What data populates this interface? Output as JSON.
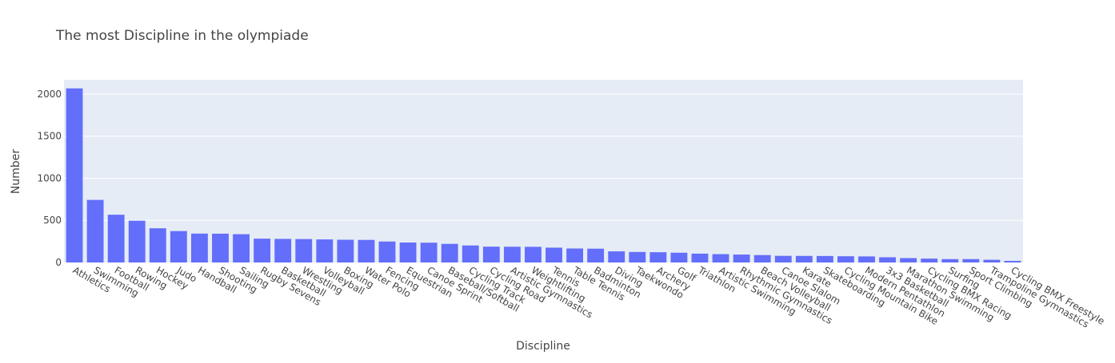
{
  "colors": {
    "bar": "#636efa",
    "plot_bg": "#e5ecf6",
    "paper_bg": "#ffffff",
    "grid": "#ffffff",
    "text": "#444444"
  },
  "chart_data": {
    "type": "bar",
    "title": "The most Discipline in the olympiade",
    "xlabel": "Discipline",
    "ylabel": "Number",
    "ylim": [
      0,
      2170
    ],
    "yticks": [
      0,
      500,
      1000,
      1500,
      2000
    ],
    "grid": true,
    "categories": [
      "Athletics",
      "Swimming",
      "Football",
      "Rowing",
      "Hockey",
      "Judo",
      "Handball",
      "Shooting",
      "Sailing",
      "Rugby Sevens",
      "Basketball",
      "Wrestling",
      "Volleyball",
      "Boxing",
      "Water Polo",
      "Fencing",
      "Equestrian",
      "Canoe Sprint",
      "Baseball/Softball",
      "Cycling Track",
      "Cycling Road",
      "Artistic Gymnastics",
      "Weightlifting",
      "Tennis",
      "Table Tennis",
      "Badminton",
      "Diving",
      "Taekwondo",
      "Archery",
      "Golf",
      "Triathlon",
      "Artistic Swimming",
      "Rhythmic Gymnastics",
      "Beach Volleyball",
      "Canoe Slalom",
      "Karate",
      "Skateboarding",
      "Cycling Mountain Bike",
      "Modern Pentathlon",
      "3x3 Basketball",
      "Marathon Swimming",
      "Cycling BMX Racing",
      "Surfing",
      "Sport Climbing",
      "Trampoline Gymnastics",
      "Cycling BMX Freestyle"
    ],
    "values": [
      2068,
      743,
      567,
      496,
      406,
      373,
      343,
      342,
      336,
      283,
      280,
      278,
      274,
      270,
      268,
      249,
      237,
      235,
      221,
      202,
      188,
      187,
      186,
      176,
      166,
      164,
      132,
      125,
      122,
      116,
      105,
      99,
      94,
      88,
      79,
      78,
      77,
      74,
      72,
      62,
      52,
      46,
      40,
      40,
      32,
      19
    ]
  }
}
